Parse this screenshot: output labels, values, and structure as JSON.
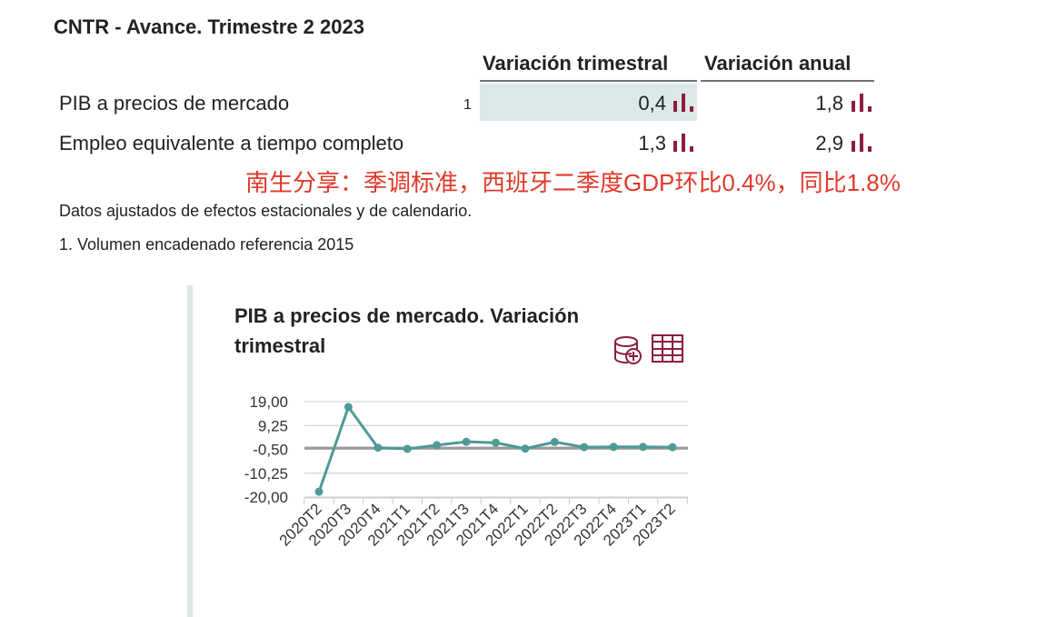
{
  "header": {
    "title": "CNTR - Avance. Trimestre 2 2023"
  },
  "table": {
    "columns": [
      "Variación trimestral",
      "Variación anual"
    ],
    "rows": [
      {
        "label": "PIB a precios de mercado",
        "note": "1",
        "values": [
          "0,4",
          "1,8"
        ]
      },
      {
        "label": "Empleo equivalente a tiempo completo",
        "values": [
          "1,3",
          "2,9"
        ]
      }
    ]
  },
  "annotation": "南生分享：季调标准，西班牙二季度GDP环比0.4%，同比1.8%",
  "notes": [
    "Datos ajustados de efectos estacionales y de calendario.",
    "1. Volumen encadenado referencia 2015"
  ],
  "chart_data": {
    "type": "line",
    "title": "PIB a precios de mercado. Variación trimestral",
    "categories": [
      "2020T2",
      "2020T3",
      "2020T4",
      "2021T1",
      "2021T2",
      "2021T3",
      "2021T4",
      "2022T1",
      "2022T2",
      "2022T3",
      "2022T4",
      "2023T1",
      "2023T2"
    ],
    "values": [
      -17.8,
      16.8,
      0.2,
      -0.3,
      1.2,
      2.6,
      2.2,
      -0.2,
      2.5,
      0.4,
      0.5,
      0.5,
      0.4
    ],
    "color": "#4e9a96",
    "ylim": [
      -20,
      19
    ],
    "yticks": [
      {
        "value": 19,
        "label": "19,00"
      },
      {
        "value": 9.25,
        "label": "9,25"
      },
      {
        "value": -0.5,
        "label": "-0,50"
      },
      {
        "value": -10.25,
        "label": "-10,25"
      },
      {
        "value": -20,
        "label": "-20,00"
      }
    ],
    "grid": true
  }
}
